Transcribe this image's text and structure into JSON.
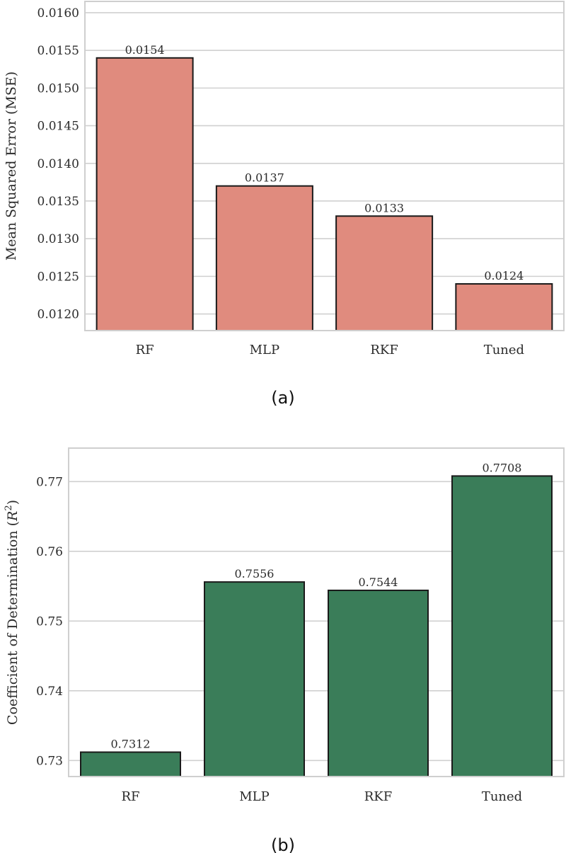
{
  "chart_data": [
    {
      "type": "bar",
      "title": "",
      "caption": "(a)",
      "xlabel": "",
      "ylabel": "Mean Squared Error (MSE)",
      "categories": [
        "RF",
        "MLP",
        "RKF",
        "Tuned"
      ],
      "values": [
        0.0154,
        0.0137,
        0.0133,
        0.0124
      ],
      "data_labels": [
        "0.0154",
        "0.0137",
        "0.0133",
        "0.0124"
      ],
      "ylim": [
        0.01178,
        0.01615
      ],
      "yticks": [
        0.012,
        0.0125,
        0.013,
        0.0135,
        0.014,
        0.0145,
        0.015,
        0.0155,
        0.016
      ],
      "ytick_labels": [
        "0.0120",
        "0.0125",
        "0.0130",
        "0.0135",
        "0.0140",
        "0.0145",
        "0.0150",
        "0.0155",
        "0.0160"
      ],
      "grid": true,
      "bar_color": "#e08b7e",
      "edge_color": "#1a1a1a"
    },
    {
      "type": "bar",
      "title": "",
      "caption": "(b)",
      "xlabel": "",
      "ylabel": "Coefficient of Determination (R²)",
      "ylabel_parts": {
        "main": "Coefficient of Determination (",
        "symbol": "R",
        "sup": "2",
        "close": ")"
      },
      "categories": [
        "RF",
        "MLP",
        "RKF",
        "Tuned"
      ],
      "values": [
        0.7312,
        0.7556,
        0.7544,
        0.7708
      ],
      "data_labels": [
        "0.7312",
        "0.7556",
        "0.7544",
        "0.7708"
      ],
      "ylim": [
        0.7277,
        0.7748
      ],
      "yticks": [
        0.73,
        0.74,
        0.75,
        0.76,
        0.77
      ],
      "ytick_labels": [
        "0.73",
        "0.74",
        "0.75",
        "0.76",
        "0.77"
      ],
      "grid": true,
      "bar_color": "#3a7d59",
      "edge_color": "#1a1a1a"
    }
  ]
}
